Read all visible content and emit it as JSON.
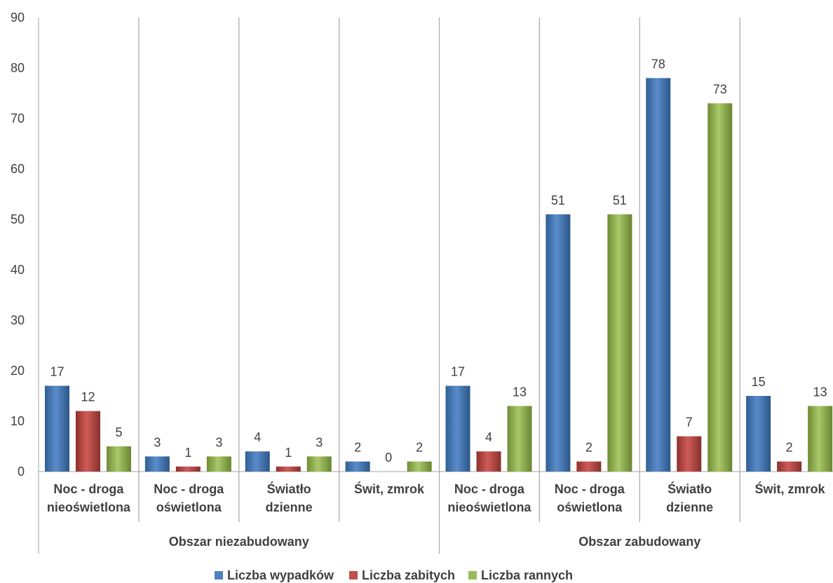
{
  "chart_data": {
    "type": "bar",
    "groups": [
      {
        "label": "Obszar niezabudowany",
        "categories": [
          [
            "Noc - droga",
            "nieoświetlona"
          ],
          [
            "Noc - droga",
            "oświetlona"
          ],
          [
            "Światło",
            "dzienne"
          ],
          [
            "Świt, zmrok"
          ]
        ]
      },
      {
        "label": "Obszar zabudowany",
        "categories": [
          [
            "Noc - droga",
            "nieoświetlona"
          ],
          [
            "Noc - droga",
            "oświetlona"
          ],
          [
            "Światło",
            "dzienne"
          ],
          [
            "Świt, zmrok"
          ]
        ]
      }
    ],
    "series": [
      {
        "name": "Liczba wypadków",
        "color": "#4f81bd",
        "values": [
          17,
          3,
          4,
          2,
          17,
          51,
          78,
          15
        ]
      },
      {
        "name": "Liczba zabitych",
        "color": "#c0504d",
        "values": [
          12,
          1,
          1,
          0,
          4,
          2,
          7,
          2
        ]
      },
      {
        "name": "Liczba rannych",
        "color": "#9bbb59",
        "values": [
          5,
          3,
          3,
          2,
          13,
          51,
          73,
          13
        ]
      }
    ],
    "yticks": [
      0,
      10,
      20,
      30,
      40,
      50,
      60,
      70,
      80,
      90
    ],
    "ylim": [
      0,
      90
    ],
    "grid": false,
    "legend_position": "bottom"
  }
}
